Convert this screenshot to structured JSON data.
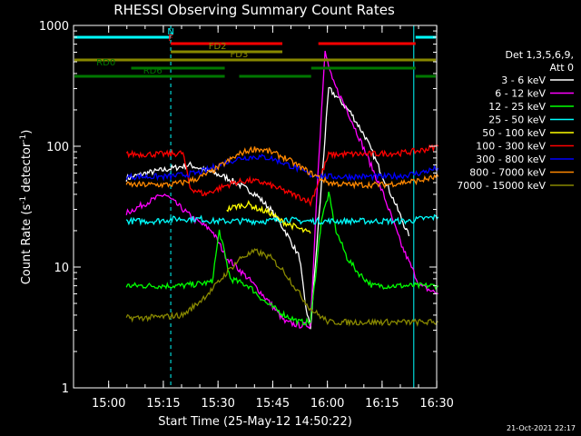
{
  "chart_data": {
    "type": "line",
    "title": "RHESSI Observing Summary Count Rates",
    "xlabel": "Start Time (25-May-12 14:50:22)",
    "ylabel": "Count Rate (s⁻¹ detector⁻¹)",
    "ylabel_parts": {
      "main": "Count Rate (s",
      "sup1": "-1",
      "mid": " detector",
      "sup2": "-1",
      "end": ")"
    },
    "yscale": "log",
    "ylim": [
      1,
      1000
    ],
    "xlim": [
      "14:50:22",
      "16:30:00"
    ],
    "x_ticks": [
      "15:00",
      "15:15",
      "15:30",
      "15:45",
      "16:00",
      "16:15",
      "16:30"
    ],
    "y_ticks": [
      "1",
      "10",
      "100",
      "1000"
    ],
    "legend_header": [
      "Det 1,3,5,6,9,",
      "Att 0"
    ],
    "legend_placement": "right",
    "series": [
      {
        "name": "3 - 6 keV",
        "color": "#ffffff",
        "points": [
          [
            14.5,
            54
          ],
          [
            20,
            60
          ],
          [
            32,
            70
          ],
          [
            42,
            55
          ],
          [
            50,
            40
          ],
          [
            54,
            30
          ],
          [
            58,
            20
          ],
          [
            62,
            12
          ],
          [
            63.5,
            5
          ],
          [
            65,
            3.1
          ],
          [
            70,
            300
          ],
          [
            72,
            260
          ],
          [
            76,
            190
          ],
          [
            80,
            120
          ],
          [
            85,
            55
          ],
          [
            88,
            35
          ],
          [
            90,
            25
          ],
          [
            92,
            18
          ]
        ]
      },
      {
        "name": "6 - 12 keV",
        "color": "#ff00ff",
        "points": [
          [
            14.5,
            28
          ],
          [
            20,
            34
          ],
          [
            25,
            40
          ],
          [
            30,
            30
          ],
          [
            33,
            25
          ],
          [
            38,
            20
          ],
          [
            42,
            12
          ],
          [
            48,
            8
          ],
          [
            54,
            5
          ],
          [
            58,
            3.5
          ],
          [
            62,
            3.3
          ],
          [
            65,
            3.3
          ],
          [
            67,
            60
          ],
          [
            69,
            600
          ],
          [
            71,
            350
          ],
          [
            75,
            200
          ],
          [
            80,
            90
          ],
          [
            85,
            40
          ],
          [
            90,
            15
          ],
          [
            95,
            7
          ],
          [
            100,
            6
          ]
        ]
      },
      {
        "name": "12 - 25 keV",
        "color": "#00ff00",
        "points": [
          [
            14.5,
            7
          ],
          [
            30,
            7
          ],
          [
            38,
            7.5
          ],
          [
            40,
            20
          ],
          [
            43,
            8
          ],
          [
            48,
            7
          ],
          [
            53,
            5
          ],
          [
            58,
            4
          ],
          [
            62,
            3.5
          ],
          [
            65,
            3.5
          ],
          [
            68,
            25
          ],
          [
            70,
            40
          ],
          [
            72,
            20
          ],
          [
            75,
            12
          ],
          [
            78,
            9
          ],
          [
            82,
            7
          ],
          [
            90,
            7
          ],
          [
            100,
            7
          ]
        ]
      },
      {
        "name": "25 - 50 keV",
        "color": "#00ffff",
        "points": [
          [
            14.5,
            24
          ],
          [
            22,
            24
          ],
          [
            28,
            25
          ],
          [
            35,
            25
          ],
          [
            38,
            24
          ],
          [
            42,
            24
          ],
          [
            48,
            24
          ],
          [
            53,
            24
          ],
          [
            58,
            25
          ],
          [
            62,
            24
          ],
          [
            68,
            24
          ],
          [
            73,
            24
          ],
          [
            80,
            24
          ],
          [
            88,
            24
          ],
          [
            92,
            24
          ],
          [
            95,
            25
          ],
          [
            100,
            26
          ]
        ]
      },
      {
        "name": "50 - 100 keV",
        "color": "#ffff00",
        "points": [
          [
            42,
            30
          ],
          [
            45,
            32
          ],
          [
            48,
            33
          ],
          [
            51,
            30
          ],
          [
            54,
            28
          ],
          [
            57,
            24
          ],
          [
            60,
            22
          ],
          [
            63,
            20
          ],
          [
            65,
            19
          ]
        ]
      },
      {
        "name": "100 - 300 keV",
        "color": "#ff0000",
        "points": [
          [
            14.5,
            86
          ],
          [
            20,
            86
          ],
          [
            26,
            86
          ],
          [
            30,
            88
          ],
          [
            32,
            45
          ],
          [
            36,
            40
          ],
          [
            40,
            45
          ],
          [
            44,
            50
          ],
          [
            48,
            52
          ],
          [
            52,
            50
          ],
          [
            56,
            45
          ],
          [
            60,
            40
          ],
          [
            64,
            36
          ],
          [
            65,
            34
          ],
          [
            70,
            85
          ],
          [
            75,
            86
          ],
          [
            80,
            86
          ],
          [
            85,
            87
          ],
          [
            90,
            88
          ],
          [
            95,
            92
          ],
          [
            100,
            100
          ]
        ]
      },
      {
        "name": "300 - 800 keV",
        "color": "#0000ff",
        "points": [
          [
            14.5,
            56
          ],
          [
            20,
            56
          ],
          [
            26,
            56
          ],
          [
            30,
            58
          ],
          [
            34,
            60
          ],
          [
            38,
            66
          ],
          [
            42,
            74
          ],
          [
            46,
            80
          ],
          [
            50,
            82
          ],
          [
            54,
            80
          ],
          [
            58,
            72
          ],
          [
            62,
            64
          ],
          [
            65,
            58
          ],
          [
            70,
            56
          ],
          [
            75,
            56
          ],
          [
            80,
            56
          ],
          [
            85,
            56
          ],
          [
            90,
            57
          ],
          [
            95,
            60
          ],
          [
            100,
            66
          ]
        ]
      },
      {
        "name": "800 - 7000 keV",
        "color": "#ff8800",
        "points": [
          [
            14.5,
            48
          ],
          [
            20,
            48
          ],
          [
            26,
            48
          ],
          [
            30,
            50
          ],
          [
            34,
            54
          ],
          [
            38,
            62
          ],
          [
            42,
            74
          ],
          [
            46,
            88
          ],
          [
            50,
            96
          ],
          [
            54,
            90
          ],
          [
            58,
            80
          ],
          [
            62,
            68
          ],
          [
            65,
            60
          ],
          [
            70,
            50
          ],
          [
            75,
            48
          ],
          [
            80,
            48
          ],
          [
            85,
            48
          ],
          [
            90,
            50
          ],
          [
            95,
            52
          ],
          [
            100,
            56
          ]
        ]
      },
      {
        "name": "7000 - 15000 keV",
        "color": "#888800",
        "points": [
          [
            14.5,
            3.8
          ],
          [
            20,
            3.8
          ],
          [
            26,
            3.9
          ],
          [
            30,
            4
          ],
          [
            34,
            5
          ],
          [
            38,
            6.5
          ],
          [
            42,
            9
          ],
          [
            46,
            12
          ],
          [
            50,
            13.5
          ],
          [
            54,
            12
          ],
          [
            58,
            9
          ],
          [
            62,
            6
          ],
          [
            65,
            4.5
          ],
          [
            70,
            3.5
          ],
          [
            75,
            3.5
          ],
          [
            80,
            3.5
          ],
          [
            85,
            3.5
          ],
          [
            90,
            3.5
          ],
          [
            95,
            3.5
          ],
          [
            100,
            3.5
          ]
        ]
      }
    ],
    "flag_bars": [
      {
        "label": "N",
        "color": "#00ffff",
        "segments": [
          [
            0,
            27
          ],
          [
            95,
            118
          ]
        ],
        "label_at": 27
      },
      {
        "label": "F",
        "color": "#ff0000",
        "segments": [
          [
            27,
            58
          ],
          [
            68,
            95
          ]
        ],
        "label_at": 27
      },
      {
        "label": "FD2",
        "color": "#888800",
        "segments": [
          [
            27,
            58
          ]
        ],
        "label_at": 40
      },
      {
        "label": "FD3",
        "color": "#888800",
        "segments": [
          [
            0,
            118
          ]
        ],
        "label_at": 46
      },
      {
        "label": "RD0",
        "color": "#007700",
        "segments": [
          [
            16,
            42
          ],
          [
            66,
            95
          ]
        ],
        "label_at": 9
      },
      {
        "label": "RD6",
        "color": "#007700",
        "segments": [
          [
            0,
            42
          ],
          [
            46,
            66
          ],
          [
            95,
            118
          ]
        ],
        "label_at": 22
      }
    ],
    "vertical_markers": [
      {
        "minute": 0,
        "color": "#00ffff",
        "style": "solid"
      },
      {
        "minute": 27,
        "color": "#00ffff",
        "style": "dashed"
      },
      {
        "minute": 94.5,
        "color": "#00ffff",
        "style": "solid"
      },
      {
        "minute": 118,
        "color": "#00ffff",
        "style": "dashed"
      }
    ]
  },
  "timestamp": "21-Oct-2021 22:17"
}
